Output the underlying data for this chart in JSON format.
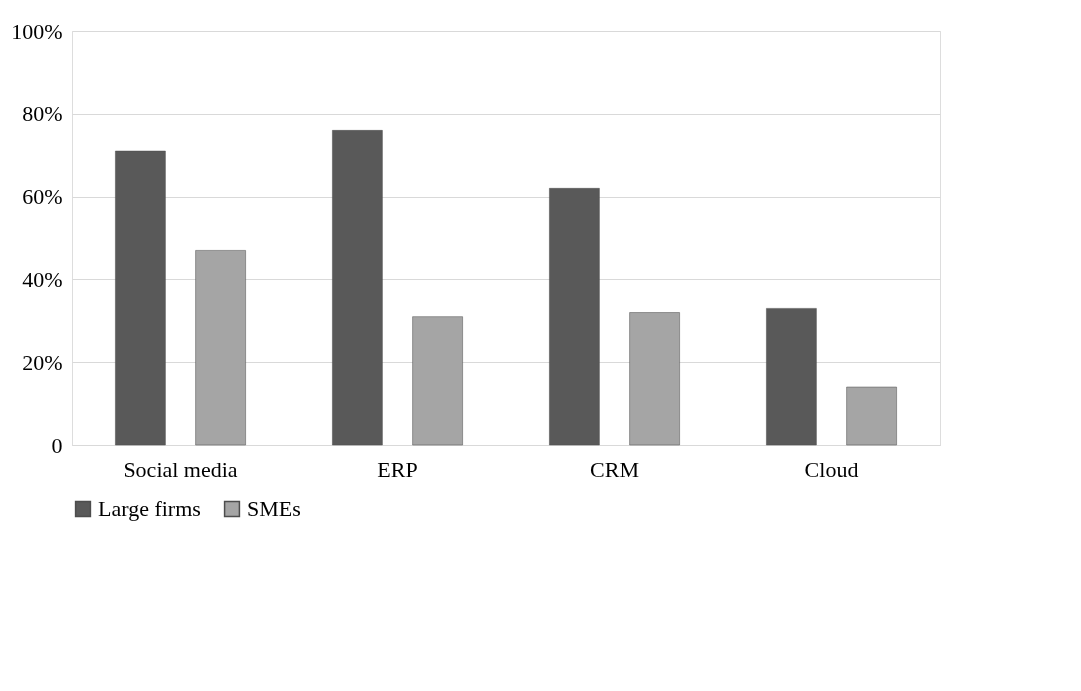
{
  "chart_data": {
    "type": "bar",
    "categories": [
      "Social media",
      "ERP",
      "CRM",
      "Cloud"
    ],
    "series": [
      {
        "name": "Large firms",
        "color": "#595959",
        "values": [
          71,
          76,
          62,
          33
        ]
      },
      {
        "name": "SMEs",
        "color": "#a5a5a5",
        "values": [
          47,
          31,
          32,
          14
        ]
      }
    ],
    "ylim": [
      0,
      100
    ],
    "yticks": [
      0,
      {
        "value": 20,
        "label": "20%"
      },
      {
        "value": 40,
        "label": "40%"
      },
      {
        "value": 60,
        "label": "60%"
      },
      {
        "value": 80,
        "label": "80%"
      },
      {
        "value": 100,
        "label": "100%"
      }
    ],
    "grid": "y",
    "legend": "bottom"
  }
}
